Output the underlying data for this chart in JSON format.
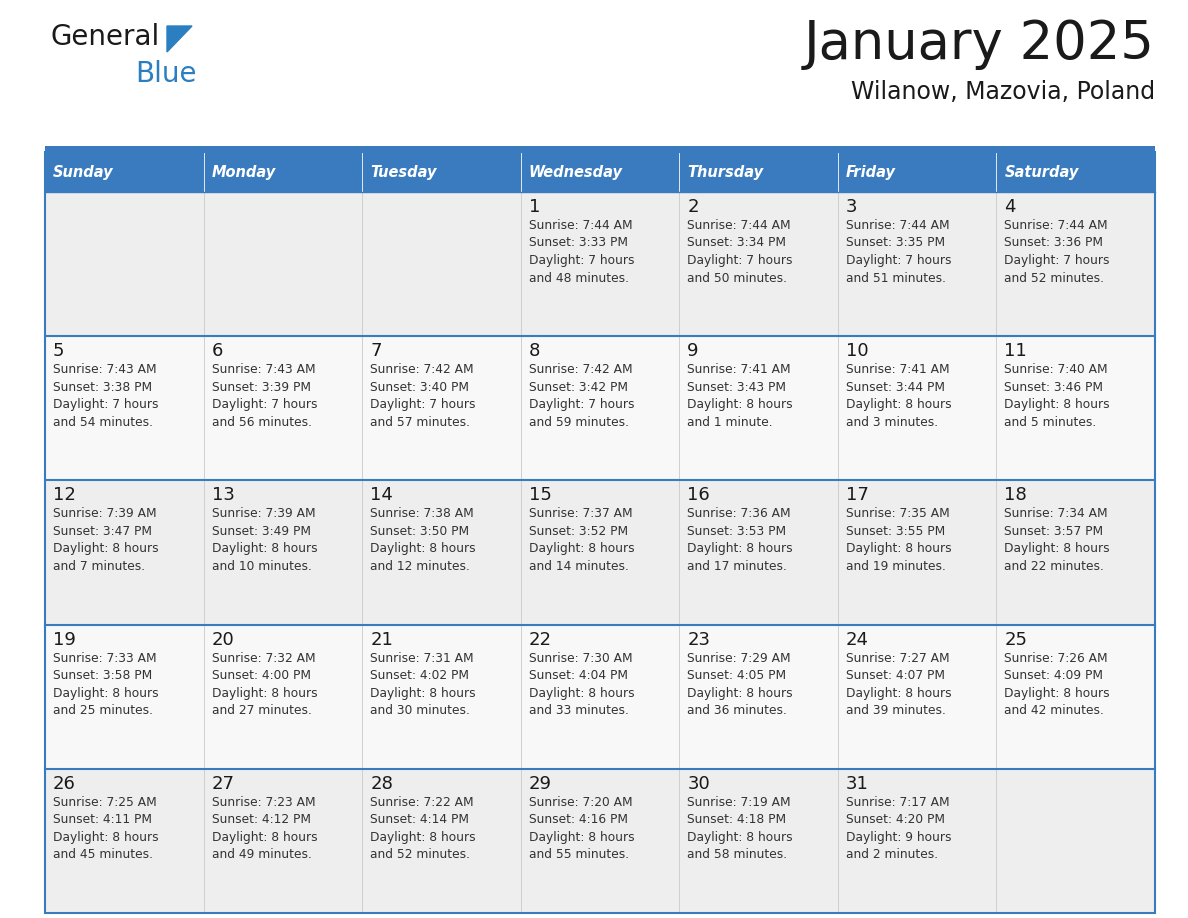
{
  "title": "January 2025",
  "subtitle": "Wilanow, Mazovia, Poland",
  "header_bg": "#3a7bbf",
  "header_text_color": "#ffffff",
  "cell_bg_odd": "#eeeeee",
  "cell_bg_even": "#f8f8f8",
  "grid_line_color": "#3a7bbf",
  "row_sep_color": "#3a7bbf",
  "day_names": [
    "Sunday",
    "Monday",
    "Tuesday",
    "Wednesday",
    "Thursday",
    "Friday",
    "Saturday"
  ],
  "title_color": "#1a1a1a",
  "subtitle_color": "#1a1a1a",
  "day_number_color": "#1a1a1a",
  "info_color": "#333333",
  "logo_general_color": "#1a1a1a",
  "logo_blue_color": "#2b7fc1",
  "calendar_data": [
    [
      null,
      null,
      null,
      {
        "day": 1,
        "sunrise": "7:44 AM",
        "sunset": "3:33 PM",
        "daylight_line1": "Daylight: 7 hours",
        "daylight_line2": "and 48 minutes."
      },
      {
        "day": 2,
        "sunrise": "7:44 AM",
        "sunset": "3:34 PM",
        "daylight_line1": "Daylight: 7 hours",
        "daylight_line2": "and 50 minutes."
      },
      {
        "day": 3,
        "sunrise": "7:44 AM",
        "sunset": "3:35 PM",
        "daylight_line1": "Daylight: 7 hours",
        "daylight_line2": "and 51 minutes."
      },
      {
        "day": 4,
        "sunrise": "7:44 AM",
        "sunset": "3:36 PM",
        "daylight_line1": "Daylight: 7 hours",
        "daylight_line2": "and 52 minutes."
      }
    ],
    [
      {
        "day": 5,
        "sunrise": "7:43 AM",
        "sunset": "3:38 PM",
        "daylight_line1": "Daylight: 7 hours",
        "daylight_line2": "and 54 minutes."
      },
      {
        "day": 6,
        "sunrise": "7:43 AM",
        "sunset": "3:39 PM",
        "daylight_line1": "Daylight: 7 hours",
        "daylight_line2": "and 56 minutes."
      },
      {
        "day": 7,
        "sunrise": "7:42 AM",
        "sunset": "3:40 PM",
        "daylight_line1": "Daylight: 7 hours",
        "daylight_line2": "and 57 minutes."
      },
      {
        "day": 8,
        "sunrise": "7:42 AM",
        "sunset": "3:42 PM",
        "daylight_line1": "Daylight: 7 hours",
        "daylight_line2": "and 59 minutes."
      },
      {
        "day": 9,
        "sunrise": "7:41 AM",
        "sunset": "3:43 PM",
        "daylight_line1": "Daylight: 8 hours",
        "daylight_line2": "and 1 minute."
      },
      {
        "day": 10,
        "sunrise": "7:41 AM",
        "sunset": "3:44 PM",
        "daylight_line1": "Daylight: 8 hours",
        "daylight_line2": "and 3 minutes."
      },
      {
        "day": 11,
        "sunrise": "7:40 AM",
        "sunset": "3:46 PM",
        "daylight_line1": "Daylight: 8 hours",
        "daylight_line2": "and 5 minutes."
      }
    ],
    [
      {
        "day": 12,
        "sunrise": "7:39 AM",
        "sunset": "3:47 PM",
        "daylight_line1": "Daylight: 8 hours",
        "daylight_line2": "and 7 minutes."
      },
      {
        "day": 13,
        "sunrise": "7:39 AM",
        "sunset": "3:49 PM",
        "daylight_line1": "Daylight: 8 hours",
        "daylight_line2": "and 10 minutes."
      },
      {
        "day": 14,
        "sunrise": "7:38 AM",
        "sunset": "3:50 PM",
        "daylight_line1": "Daylight: 8 hours",
        "daylight_line2": "and 12 minutes."
      },
      {
        "day": 15,
        "sunrise": "7:37 AM",
        "sunset": "3:52 PM",
        "daylight_line1": "Daylight: 8 hours",
        "daylight_line2": "and 14 minutes."
      },
      {
        "day": 16,
        "sunrise": "7:36 AM",
        "sunset": "3:53 PM",
        "daylight_line1": "Daylight: 8 hours",
        "daylight_line2": "and 17 minutes."
      },
      {
        "day": 17,
        "sunrise": "7:35 AM",
        "sunset": "3:55 PM",
        "daylight_line1": "Daylight: 8 hours",
        "daylight_line2": "and 19 minutes."
      },
      {
        "day": 18,
        "sunrise": "7:34 AM",
        "sunset": "3:57 PM",
        "daylight_line1": "Daylight: 8 hours",
        "daylight_line2": "and 22 minutes."
      }
    ],
    [
      {
        "day": 19,
        "sunrise": "7:33 AM",
        "sunset": "3:58 PM",
        "daylight_line1": "Daylight: 8 hours",
        "daylight_line2": "and 25 minutes."
      },
      {
        "day": 20,
        "sunrise": "7:32 AM",
        "sunset": "4:00 PM",
        "daylight_line1": "Daylight: 8 hours",
        "daylight_line2": "and 27 minutes."
      },
      {
        "day": 21,
        "sunrise": "7:31 AM",
        "sunset": "4:02 PM",
        "daylight_line1": "Daylight: 8 hours",
        "daylight_line2": "and 30 minutes."
      },
      {
        "day": 22,
        "sunrise": "7:30 AM",
        "sunset": "4:04 PM",
        "daylight_line1": "Daylight: 8 hours",
        "daylight_line2": "and 33 minutes."
      },
      {
        "day": 23,
        "sunrise": "7:29 AM",
        "sunset": "4:05 PM",
        "daylight_line1": "Daylight: 8 hours",
        "daylight_line2": "and 36 minutes."
      },
      {
        "day": 24,
        "sunrise": "7:27 AM",
        "sunset": "4:07 PM",
        "daylight_line1": "Daylight: 8 hours",
        "daylight_line2": "and 39 minutes."
      },
      {
        "day": 25,
        "sunrise": "7:26 AM",
        "sunset": "4:09 PM",
        "daylight_line1": "Daylight: 8 hours",
        "daylight_line2": "and 42 minutes."
      }
    ],
    [
      {
        "day": 26,
        "sunrise": "7:25 AM",
        "sunset": "4:11 PM",
        "daylight_line1": "Daylight: 8 hours",
        "daylight_line2": "and 45 minutes."
      },
      {
        "day": 27,
        "sunrise": "7:23 AM",
        "sunset": "4:12 PM",
        "daylight_line1": "Daylight: 8 hours",
        "daylight_line2": "and 49 minutes."
      },
      {
        "day": 28,
        "sunrise": "7:22 AM",
        "sunset": "4:14 PM",
        "daylight_line1": "Daylight: 8 hours",
        "daylight_line2": "and 52 minutes."
      },
      {
        "day": 29,
        "sunrise": "7:20 AM",
        "sunset": "4:16 PM",
        "daylight_line1": "Daylight: 8 hours",
        "daylight_line2": "and 55 minutes."
      },
      {
        "day": 30,
        "sunrise": "7:19 AM",
        "sunset": "4:18 PM",
        "daylight_line1": "Daylight: 8 hours",
        "daylight_line2": "and 58 minutes."
      },
      {
        "day": 31,
        "sunrise": "7:17 AM",
        "sunset": "4:20 PM",
        "daylight_line1": "Daylight: 9 hours",
        "daylight_line2": "and 2 minutes."
      },
      null
    ]
  ]
}
